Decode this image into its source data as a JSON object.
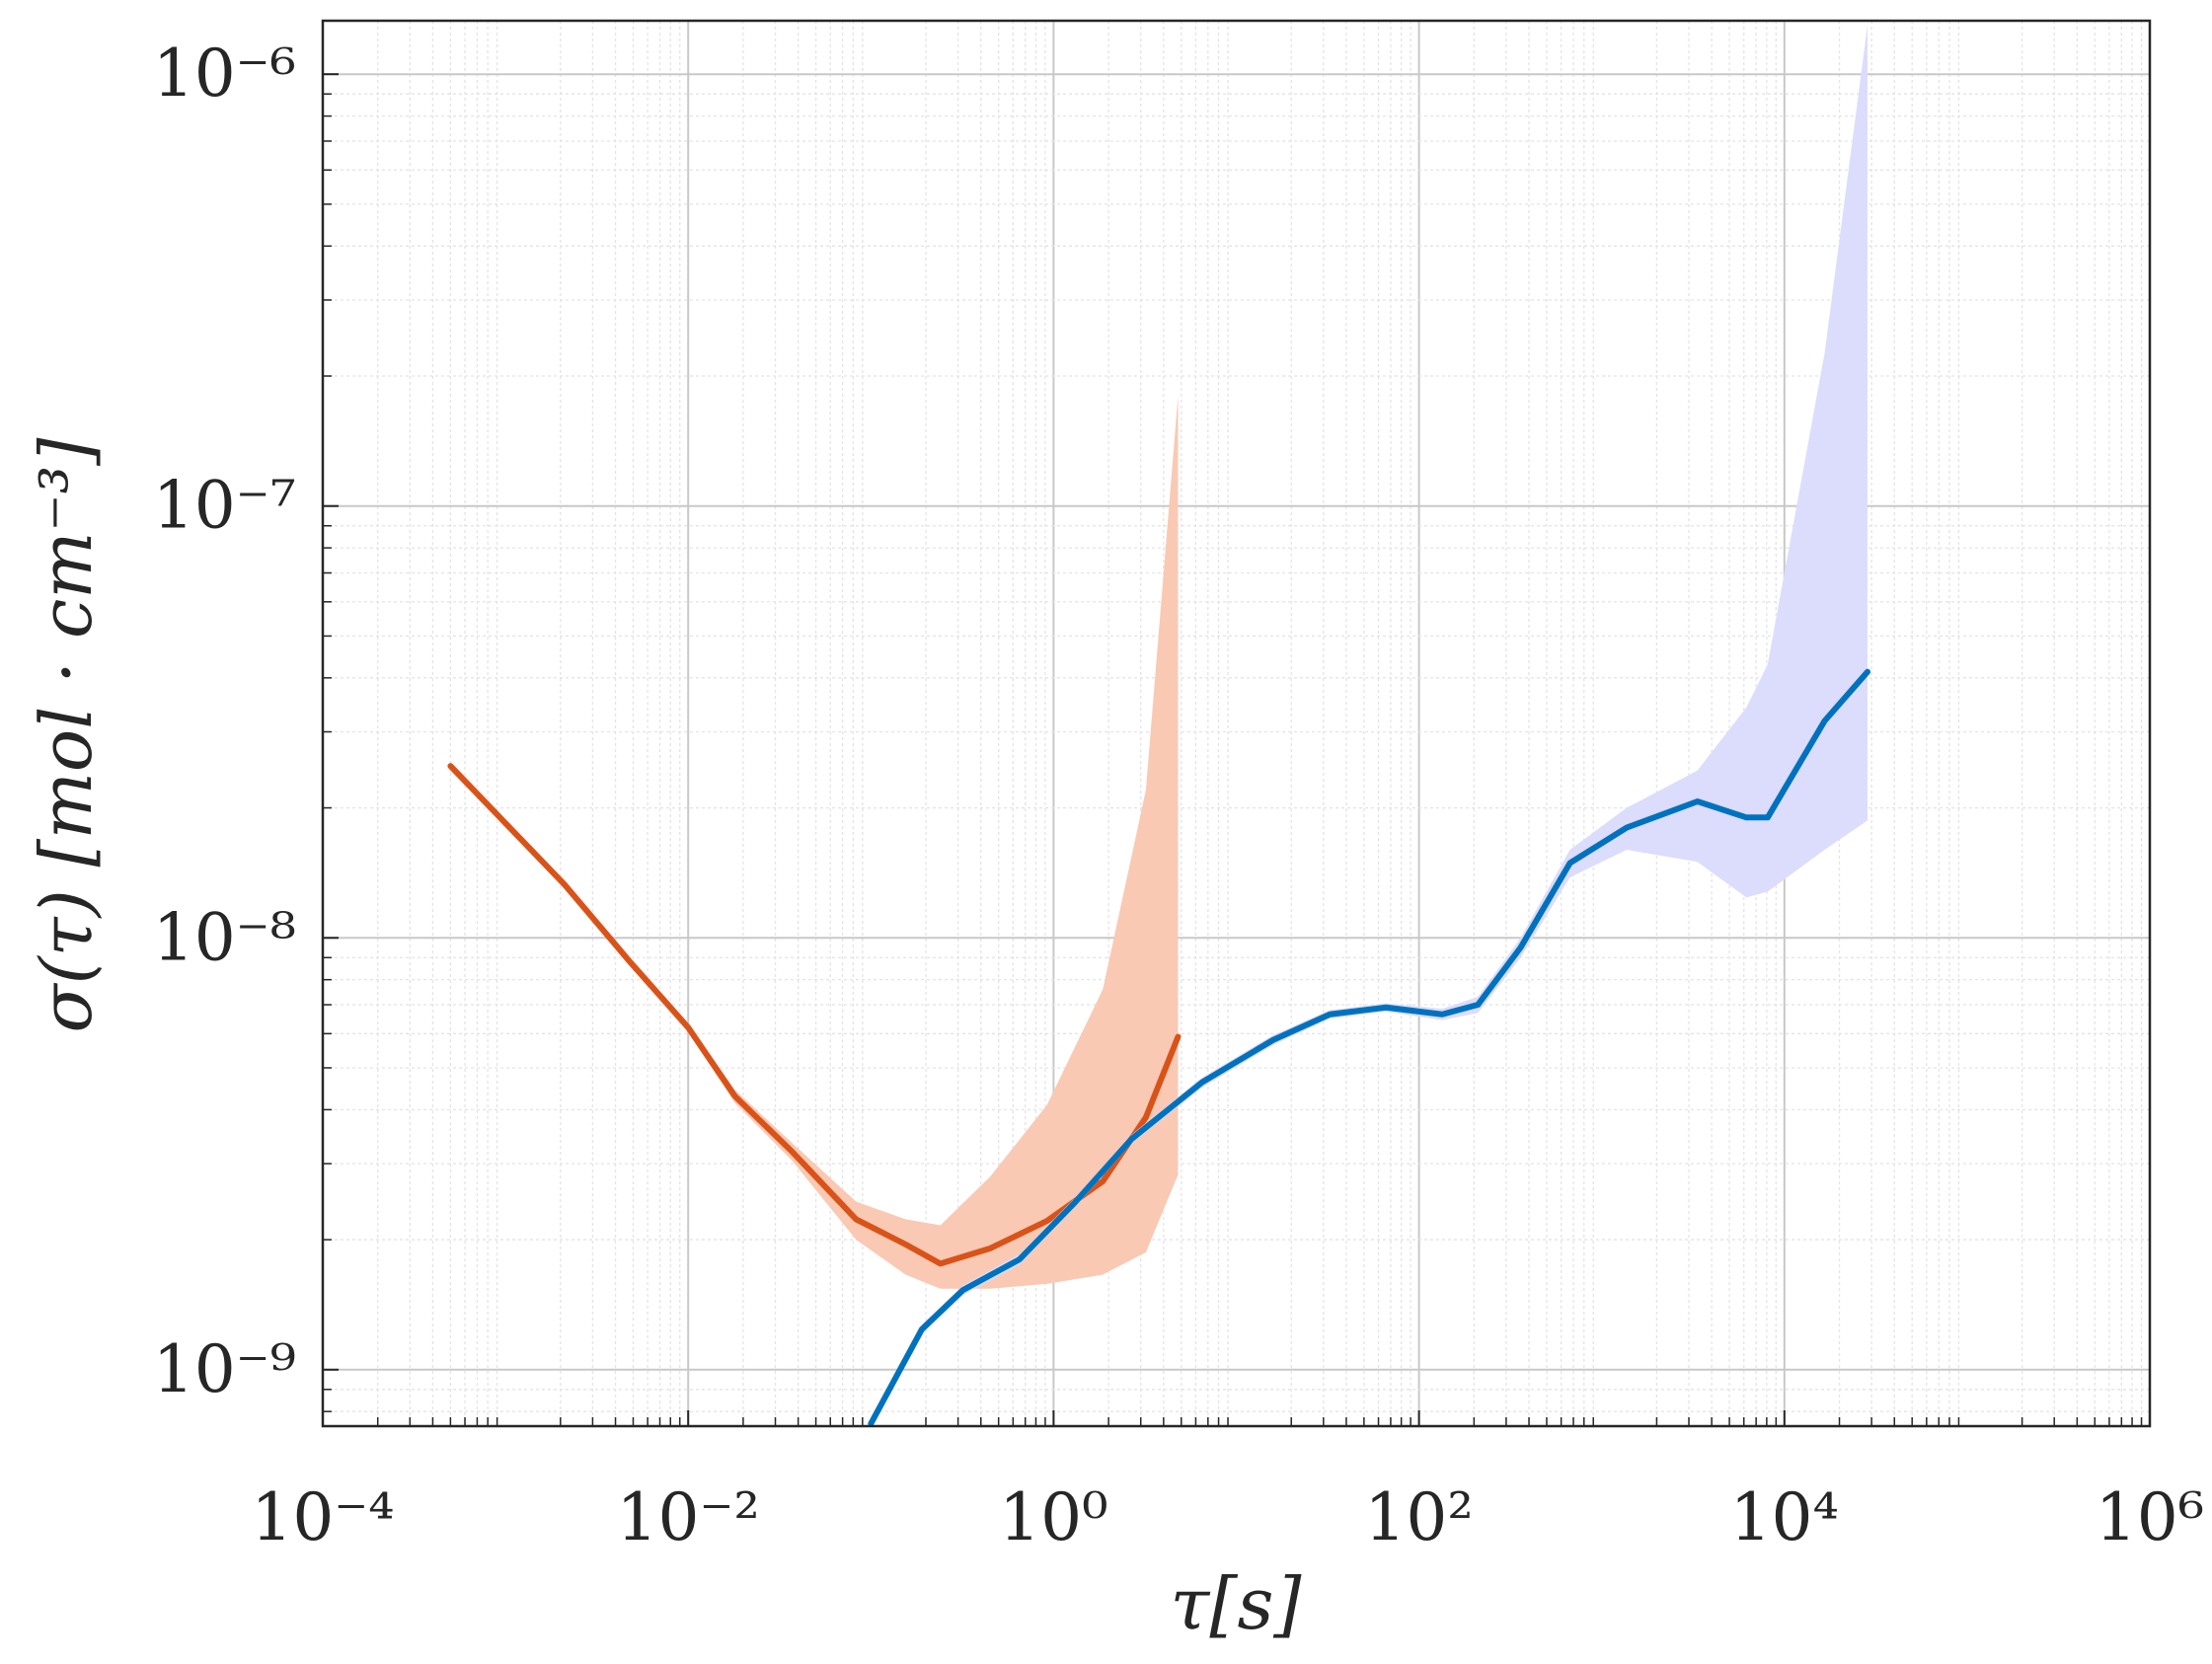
{
  "chart_data": {
    "type": "line",
    "xlabel": "τ[s]",
    "ylabel": "σ(τ) [mol · cm⁻³]",
    "xscale": "log",
    "yscale": "log",
    "xlim": [
      0.0001,
      1000000
    ],
    "ylim": [
      7.4e-10,
      1.33e-06
    ],
    "xticks": [
      {
        "value": 0.0001,
        "label": "10⁻⁴"
      },
      {
        "value": 0.01,
        "label": "10⁻²"
      },
      {
        "value": 1,
        "label": "10⁰"
      },
      {
        "value": 100,
        "label": "10²"
      },
      {
        "value": 10000,
        "label": "10⁴"
      },
      {
        "value": 1000000,
        "label": "10⁶"
      }
    ],
    "yticks": [
      {
        "value": 1e-09,
        "label": "10⁻⁹"
      },
      {
        "value": 1e-08,
        "label": "10⁻⁸"
      },
      {
        "value": 1e-07,
        "label": "10⁻⁷"
      },
      {
        "value": 1e-06,
        "label": "10⁻⁶"
      }
    ],
    "grid": true,
    "minor_grid": true,
    "series": [
      {
        "color": "#d95319",
        "band_color": "#f9c9b3",
        "x": [
          0.0005,
          0.0021,
          0.0048,
          0.01,
          0.018,
          0.037,
          0.083,
          0.155,
          0.24,
          0.45,
          0.92,
          1.86,
          3.2,
          4.8
        ],
        "values": [
          2.5e-08,
          1.33e-08,
          8.8e-09,
          6.2e-09,
          4.3e-09,
          3.2e-09,
          2.23e-09,
          1.95e-09,
          1.76e-09,
          1.91e-09,
          2.21e-09,
          2.73e-09,
          3.84e-09,
          5.9e-09
        ],
        "upper": [
          2.55e-08,
          1.36e-08,
          9e-09,
          6.35e-09,
          4.45e-09,
          3.35e-09,
          2.45e-09,
          2.23e-09,
          2.16e-09,
          2.8e-09,
          4.1e-09,
          7.6e-09,
          2.2e-08,
          1.8e-07
        ],
        "lower": [
          2.45e-08,
          1.3e-08,
          8.6e-09,
          6.05e-09,
          4.15e-09,
          3.05e-09,
          2e-09,
          1.66e-09,
          1.54e-09,
          1.54e-09,
          1.58e-09,
          1.66e-09,
          1.87e-09,
          2.83e-09
        ]
      },
      {
        "color": "#0072bd",
        "band_color": "#dcdcfd",
        "x": [
          0.1,
          0.19,
          0.32,
          0.65,
          1.31,
          2.67,
          6.5,
          15.9,
          32.5,
          66,
          134,
          210,
          360,
          670,
          1370,
          3340,
          6200,
          8100,
          16600,
          28500
        ],
        "values": [
          7.5e-10,
          1.24e-09,
          1.53e-09,
          1.8e-09,
          2.44e-09,
          3.42e-09,
          4.63e-09,
          5.8e-09,
          6.65e-09,
          6.9e-09,
          6.65e-09,
          7e-09,
          9.5e-09,
          1.49e-08,
          1.8e-08,
          2.07e-08,
          1.9e-08,
          1.9e-08,
          3.18e-08,
          4.13e-08
        ],
        "upper": [
          7.7e-10,
          1.27e-09,
          1.57e-09,
          1.85e-09,
          2.5e-09,
          3.5e-09,
          4.75e-09,
          5.95e-09,
          6.8e-09,
          7.05e-09,
          6.85e-09,
          7.3e-09,
          1e-08,
          1.6e-08,
          2e-08,
          2.44e-08,
          3.42e-08,
          4.3e-08,
          2.26e-07,
          1.3e-06
        ],
        "lower": [
          7.3e-10,
          1.21e-09,
          1.49e-09,
          1.75e-09,
          2.38e-09,
          3.34e-09,
          4.5e-09,
          5.65e-09,
          6.5e-09,
          6.75e-09,
          6.45e-09,
          6.7e-09,
          9e-09,
          1.38e-08,
          1.6e-08,
          1.5e-08,
          1.24e-08,
          1.28e-08,
          1.6e-08,
          1.87e-08
        ]
      }
    ]
  }
}
